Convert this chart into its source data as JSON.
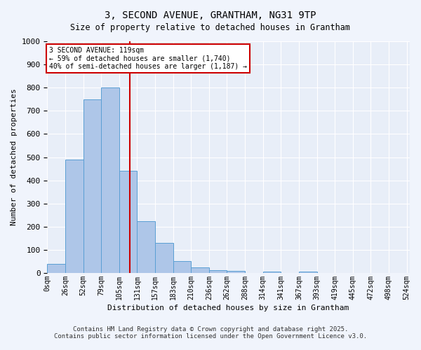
{
  "title_line1": "3, SECOND AVENUE, GRANTHAM, NG31 9TP",
  "title_line2": "Size of property relative to detached houses in Grantham",
  "xlabel": "Distribution of detached houses by size in Grantham",
  "ylabel": "Number of detached properties",
  "bar_values": [
    40,
    490,
    750,
    800,
    440,
    225,
    130,
    50,
    25,
    13,
    8,
    0,
    5,
    0,
    5,
    0,
    0,
    0,
    0,
    0
  ],
  "bin_labels": [
    "0sqm",
    "26sqm",
    "52sqm",
    "79sqm",
    "105sqm",
    "131sqm",
    "157sqm",
    "183sqm",
    "210sqm",
    "236sqm",
    "262sqm",
    "288sqm",
    "314sqm",
    "341sqm",
    "367sqm",
    "393sqm",
    "419sqm",
    "445sqm",
    "472sqm",
    "498sqm",
    "524sqm"
  ],
  "bar_color": "#aec6e8",
  "bar_edge_color": "#5a9fd4",
  "bg_color": "#e8eef8",
  "fig_bg_color": "#f0f4fc",
  "grid_color": "#ffffff",
  "vline_x": 119,
  "ylim": [
    0,
    1000
  ],
  "yticks": [
    0,
    100,
    200,
    300,
    400,
    500,
    600,
    700,
    800,
    900,
    1000
  ],
  "annotation_title": "3 SECOND AVENUE: 119sqm",
  "annotation_line2": "← 59% of detached houses are smaller (1,740)",
  "annotation_line3": "40% of semi-detached houses are larger (1,187) →",
  "annotation_box_color": "#cc0000",
  "footer_line1": "Contains HM Land Registry data © Crown copyright and database right 2025.",
  "footer_line2": "Contains public sector information licensed under the Open Government Licence v3.0."
}
